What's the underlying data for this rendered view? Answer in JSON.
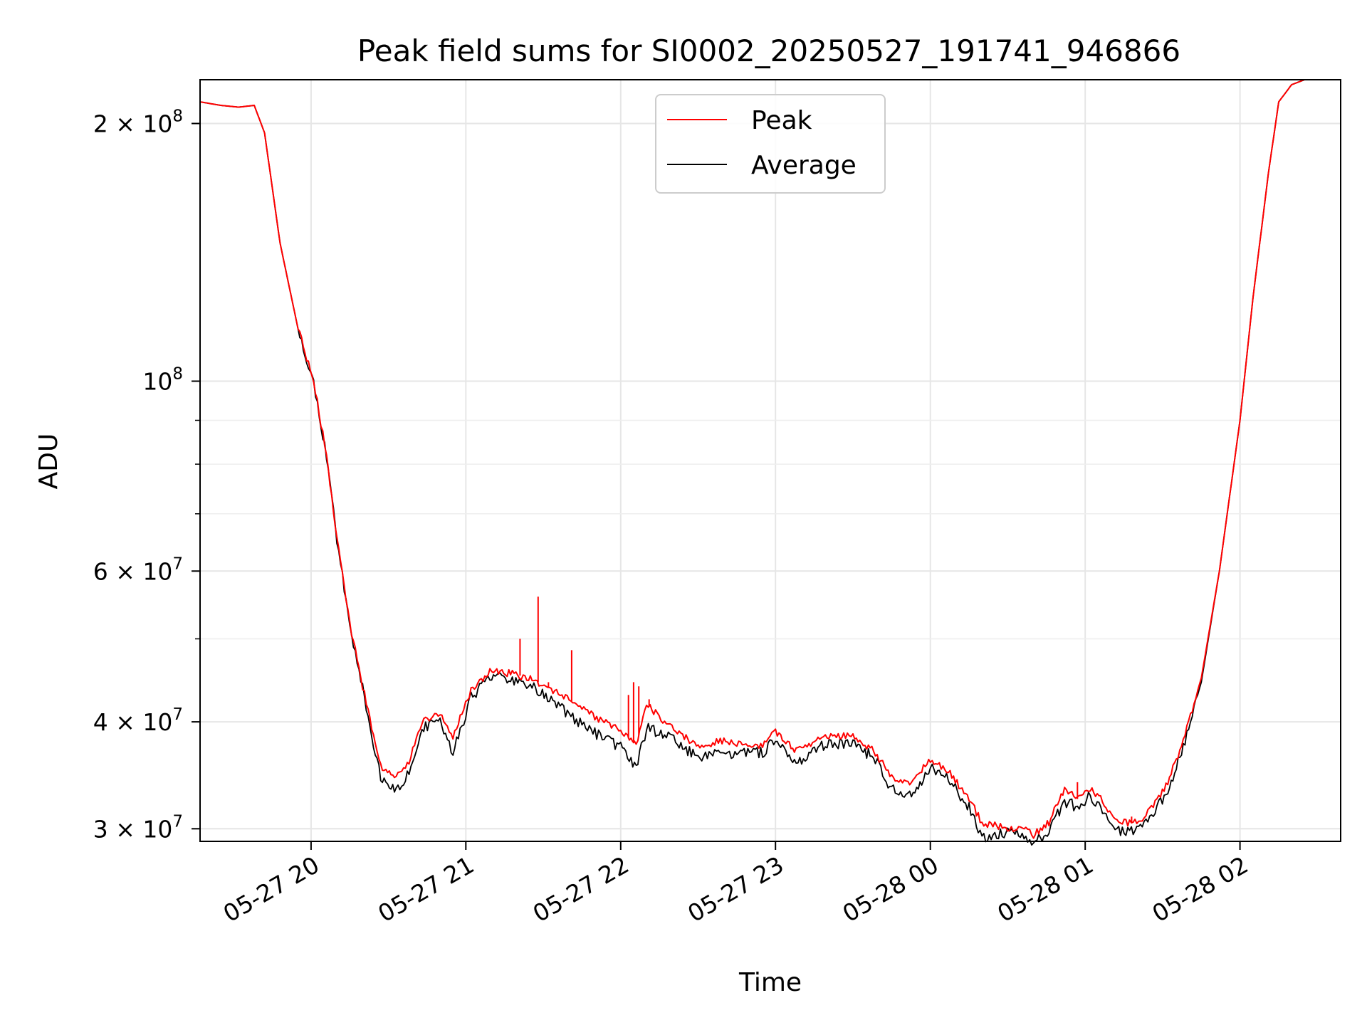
{
  "chart_data": {
    "type": "line",
    "title": "Peak field sums for SI0002_20250527_191741_946866",
    "xlabel": "Time",
    "ylabel": "ADU",
    "y_scale": "log",
    "xlim": [
      "2025-05-27 19:17",
      "2025-05-28 02:39"
    ],
    "ylim": [
      29000000,
      225000000
    ],
    "grid": true,
    "legend": "upper center",
    "x_ticks": [
      "05-27 20",
      "05-27 21",
      "05-27 22",
      "05-27 23",
      "05-28 00",
      "05-28 01",
      "05-28 02"
    ],
    "x_tick_values": [
      "2025-05-27 20:00",
      "2025-05-27 21:00",
      "2025-05-27 22:00",
      "2025-05-27 23:00",
      "2025-05-28 00:00",
      "2025-05-28 01:00",
      "2025-05-28 02:00"
    ],
    "y_major_ticks": [
      {
        "value": 30000000,
        "mant": "3",
        "exp": "7"
      },
      {
        "value": 40000000,
        "mant": "4",
        "exp": "7"
      },
      {
        "value": 60000000,
        "mant": "6",
        "exp": "7"
      },
      {
        "value": 100000000,
        "mant": "",
        "exp": "8"
      },
      {
        "value": 200000000,
        "mant": "2",
        "exp": "8"
      }
    ],
    "y_minor_ticks": [
      50000000,
      70000000,
      80000000,
      90000000
    ],
    "x": [
      "2025-05-27 19:17",
      "2025-05-27 19:25",
      "2025-05-27 19:32",
      "2025-05-27 19:38",
      "2025-05-27 19:42",
      "2025-05-27 19:48",
      "2025-05-27 19:55",
      "2025-05-27 20:01",
      "2025-05-27 20:06",
      "2025-05-27 20:10",
      "2025-05-27 20:15",
      "2025-05-27 20:20",
      "2025-05-27 20:27",
      "2025-05-27 20:33",
      "2025-05-27 20:38",
      "2025-05-27 20:43",
      "2025-05-27 20:50",
      "2025-05-27 20:55",
      "2025-05-27 21:02",
      "2025-05-27 21:10",
      "2025-05-27 21:18",
      "2025-05-27 21:25",
      "2025-05-27 21:31",
      "2025-05-27 21:40",
      "2025-05-27 21:50",
      "2025-05-27 22:00",
      "2025-05-27 22:06",
      "2025-05-27 22:10",
      "2025-05-27 22:17",
      "2025-05-27 22:22",
      "2025-05-27 22:30",
      "2025-05-27 22:40",
      "2025-05-27 22:50",
      "2025-05-27 22:55",
      "2025-05-27 23:00",
      "2025-05-27 23:08",
      "2025-05-27 23:20",
      "2025-05-27 23:30",
      "2025-05-27 23:38",
      "2025-05-27 23:45",
      "2025-05-27 23:52",
      "2025-05-28 00:00",
      "2025-05-28 00:07",
      "2025-05-28 00:15",
      "2025-05-28 00:20",
      "2025-05-28 00:30",
      "2025-05-28 00:37",
      "2025-05-28 00:40",
      "2025-05-28 00:46",
      "2025-05-28 00:52",
      "2025-05-28 00:57",
      "2025-05-28 01:02",
      "2025-05-28 01:06",
      "2025-05-28 01:13",
      "2025-05-28 01:20",
      "2025-05-28 01:25",
      "2025-05-28 01:32",
      "2025-05-28 01:38",
      "2025-05-28 01:45",
      "2025-05-28 01:52",
      "2025-05-28 02:00",
      "2025-05-28 02:05",
      "2025-05-28 02:11",
      "2025-05-28 02:15",
      "2025-05-28 02:20",
      "2025-05-28 02:25",
      "2025-05-28 02:39"
    ],
    "series": [
      {
        "name": "Peak",
        "color": "#ff0000",
        "values": [
          212000000,
          210000000,
          209000000,
          210000000,
          195000000,
          145000000,
          115000000,
          100000000,
          82000000,
          66000000,
          52000000,
          44000000,
          35500000,
          34500000,
          36000000,
          40000000,
          41000000,
          38500000,
          43500000,
          46000000,
          45500000,
          45000000,
          44000000,
          42500000,
          40500000,
          39000000,
          37500000,
          42000000,
          40000000,
          39000000,
          37500000,
          38000000,
          37500000,
          37500000,
          39000000,
          37000000,
          38500000,
          38500000,
          37000000,
          34500000,
          34000000,
          36000000,
          35000000,
          32500000,
          30500000,
          30000000,
          30000000,
          29500000,
          30500000,
          33500000,
          32500000,
          33500000,
          32500000,
          30500000,
          30500000,
          31500000,
          34000000,
          38000000,
          45000000,
          60000000,
          90000000,
          125000000,
          175000000,
          212000000,
          222000000,
          225000000,
          225000000
        ],
        "spikes": [
          {
            "x": "2025-05-27 21:21",
            "y": 50000000
          },
          {
            "x": "2025-05-27 21:28",
            "y": 56000000
          },
          {
            "x": "2025-05-27 21:32",
            "y": 44500000
          },
          {
            "x": "2025-05-27 21:41",
            "y": 48500000
          },
          {
            "x": "2025-05-27 22:03",
            "y": 43000000
          },
          {
            "x": "2025-05-27 22:05",
            "y": 44500000
          },
          {
            "x": "2025-05-27 22:07",
            "y": 44000000
          },
          {
            "x": "2025-05-27 22:11",
            "y": 42500000
          },
          {
            "x": "2025-05-28 00:57",
            "y": 34000000
          },
          {
            "x": "2025-05-28 01:18",
            "y": 31000000
          }
        ]
      },
      {
        "name": "Average",
        "color": "#000000",
        "values": [
          212000000,
          210000000,
          209000000,
          210000000,
          195000000,
          145000000,
          115000000,
          100000000,
          82000000,
          66000000,
          52000000,
          44000000,
          34500000,
          33500000,
          35000000,
          39500000,
          40500000,
          37000000,
          43000000,
          45500000,
          45000000,
          44500000,
          43000000,
          41000000,
          39000000,
          37500000,
          35500000,
          39500000,
          39000000,
          38000000,
          36500000,
          37000000,
          37000000,
          37000000,
          38500000,
          36000000,
          38000000,
          38000000,
          36500000,
          33500000,
          33000000,
          35500000,
          34500000,
          32000000,
          29500000,
          29800000,
          29600000,
          29000000,
          30000000,
          32500000,
          32000000,
          33000000,
          32000000,
          30000000,
          30000000,
          31000000,
          33500000,
          37500000,
          44500000,
          60000000,
          90000000,
          125000000,
          175000000,
          212000000,
          222000000,
          225000000,
          225000000
        ]
      }
    ]
  }
}
